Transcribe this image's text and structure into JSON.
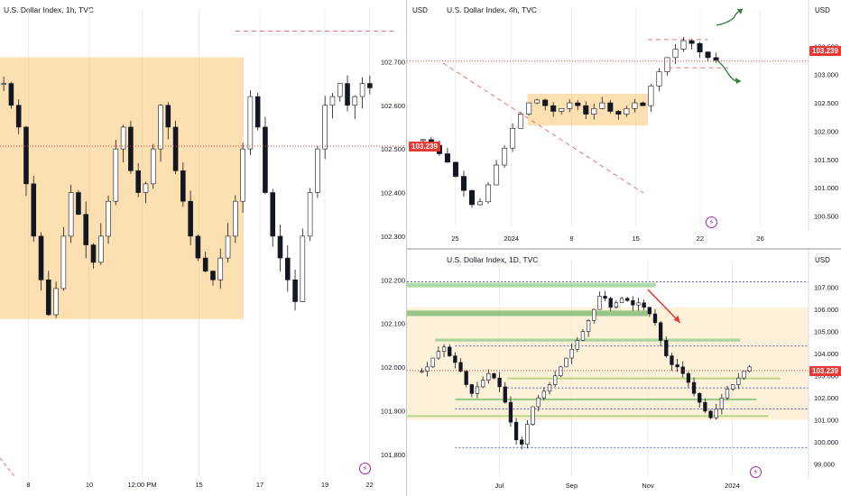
{
  "chart_data": [
    {
      "id": "h1",
      "type": "candlestick",
      "title": "U.S. Dollar Index, 1h, TVC",
      "currency": "USD",
      "ylim": [
        101.75,
        102.8
      ],
      "yticks": [
        "102.700",
        "102.600",
        "102.500",
        "102.400",
        "102.300",
        "102.200",
        "102.100",
        "102.000",
        "101.900",
        "101.800"
      ],
      "xticks": [
        "8",
        "10",
        "12:00 PM",
        "15",
        "17",
        "19",
        "22"
      ],
      "last_price": "103.239",
      "shapes": [
        {
          "kind": "zone",
          "color": "#f6a623",
          "y": [
            102.11,
            102.71
          ],
          "x": [
            0,
            0.6
          ]
        },
        {
          "kind": "dashed",
          "color": "#e57373",
          "y": 102.77,
          "x": [
            0.58,
            0.97
          ]
        },
        {
          "kind": "dashed",
          "color": "#e57373",
          "y": 103.19,
          "x": [
            0.63,
            0.99
          ]
        }
      ],
      "path": [
        102.65,
        102.6,
        102.55,
        102.42,
        102.3,
        102.2,
        102.12,
        102.18,
        102.3,
        102.4,
        102.35,
        102.28,
        102.24,
        102.3,
        102.38,
        102.5,
        102.55,
        102.45,
        102.4,
        102.42,
        102.5,
        102.6,
        102.55,
        102.45,
        102.38,
        102.3,
        102.25,
        102.22,
        102.2,
        102.25,
        102.3,
        102.38,
        102.5,
        102.62,
        102.55,
        102.4,
        102.3,
        102.25,
        102.2,
        102.15,
        102.3,
        102.4,
        102.5,
        102.6,
        102.62,
        102.65,
        102.6,
        102.62,
        102.65,
        102.64
      ]
    },
    {
      "id": "h4",
      "type": "candlestick",
      "title": "U.S. Dollar Index, 4h, TVC",
      "currency": "USD",
      "ylim": [
        100.3,
        104.0
      ],
      "yticks": [
        "103.500",
        "103.000",
        "102.500",
        "102.000",
        "101.500",
        "101.000",
        "100.500"
      ],
      "xticks": [
        "25",
        "2024",
        "8",
        "15",
        "22",
        "26"
      ],
      "last_price": "103.239",
      "shapes": [
        {
          "kind": "zone",
          "color": "#f6a623",
          "y": [
            102.1,
            102.66
          ],
          "x": [
            0.3,
            0.6
          ]
        },
        {
          "kind": "dashed",
          "color": "#e57373",
          "y": 103.62,
          "x": [
            0.6,
            0.75
          ]
        },
        {
          "kind": "dashed",
          "color": "#e57373",
          "y": 103.12,
          "x": [
            0.65,
            0.8
          ]
        }
      ],
      "path": [
        101.85,
        101.75,
        101.6,
        101.45,
        101.2,
        100.95,
        100.7,
        100.75,
        101.05,
        101.4,
        101.7,
        102.05,
        102.3,
        102.5,
        102.55,
        102.45,
        102.35,
        102.4,
        102.5,
        102.45,
        102.3,
        102.4,
        102.5,
        102.35,
        102.3,
        102.4,
        102.5,
        102.45,
        102.8,
        103.05,
        103.3,
        103.45,
        103.6,
        103.55,
        103.4,
        103.3,
        103.25
      ]
    },
    {
      "id": "d1",
      "type": "candlestick",
      "title": "U.S. Dollar Index, 1D, TVC",
      "currency": "USD",
      "ylim": [
        98.5,
        107.8
      ],
      "yticks": [
        "107.000",
        "106.000",
        "105.000",
        "104.000",
        "103.000",
        "102.000",
        "101.000",
        "100.000",
        "99.000"
      ],
      "xticks": [
        "Jul",
        "Sep",
        "Nov",
        "2024"
      ],
      "last_price": "103.239",
      "shapes": [
        {
          "kind": "zone",
          "color": "#fde7c0",
          "y": [
            101.0,
            106.1
          ],
          "x": [
            0.0,
            1.0
          ]
        },
        {
          "kind": "zoneg",
          "color": "#66bb6a",
          "y": [
            107.0,
            107.2
          ],
          "x": [
            0.0,
            0.62
          ]
        },
        {
          "kind": "zoneg",
          "color": "#43a047",
          "y": [
            105.7,
            105.95
          ],
          "x": [
            0.0,
            0.6
          ]
        },
        {
          "kind": "zoneg",
          "color": "#66bb6a",
          "y": [
            104.55,
            104.68
          ],
          "x": [
            0.07,
            0.83
          ]
        },
        {
          "kind": "zonegl",
          "color": "#66bb6a",
          "y": [
            101.9,
            101.97
          ],
          "x": [
            0.12,
            0.87
          ]
        },
        {
          "kind": "zonegl",
          "color": "#9ccc65",
          "y": [
            102.85,
            102.92
          ],
          "x": [
            0.25,
            0.93
          ]
        },
        {
          "kind": "zonegl",
          "color": "#9ccc65",
          "y": [
            101.15,
            101.22
          ],
          "x": [
            0.0,
            0.9
          ]
        },
        {
          "kind": "dotblue",
          "y": 107.25,
          "x": [
            0.0,
            1.0
          ]
        },
        {
          "kind": "dotblue",
          "y": 104.35,
          "x": [
            0.12,
            1.0
          ]
        },
        {
          "kind": "dotblue",
          "y": 102.45,
          "x": [
            0.25,
            1.0
          ]
        },
        {
          "kind": "dotblue",
          "y": 101.5,
          "x": [
            0.12,
            1.0
          ]
        },
        {
          "kind": "dotblue",
          "y": 99.75,
          "x": [
            0.12,
            1.0
          ]
        },
        {
          "kind": "arrow",
          "color": "#e53935",
          "from": [
            0.6,
            106.9
          ],
          "to": [
            0.68,
            105.4
          ]
        }
      ],
      "path": [
        103.2,
        103.4,
        103.8,
        104.1,
        104.3,
        103.9,
        103.6,
        103.2,
        102.6,
        102.2,
        102.5,
        102.8,
        103.1,
        102.9,
        102.5,
        101.8,
        100.9,
        100.1,
        99.9,
        100.8,
        101.6,
        102.0,
        102.3,
        102.6,
        103.0,
        103.4,
        103.8,
        104.2,
        104.6,
        105.0,
        105.5,
        106.0,
        106.6,
        106.5,
        106.1,
        106.3,
        106.5,
        106.4,
        106.2,
        106.3,
        106.1,
        105.8,
        105.4,
        104.6,
        103.9,
        103.5,
        103.4,
        103.1,
        102.7,
        102.2,
        101.8,
        101.4,
        101.1,
        101.5,
        102.0,
        102.4,
        102.6,
        102.9,
        103.2,
        103.4
      ]
    }
  ],
  "badges": {
    "flash": "⚡"
  }
}
